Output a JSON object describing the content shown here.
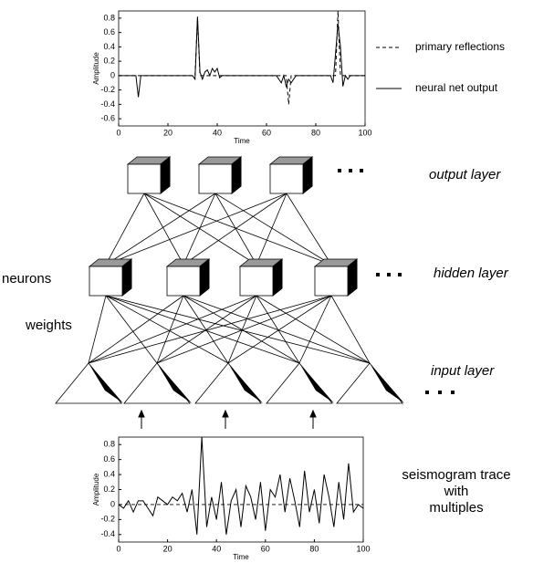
{
  "chart_data": [
    {
      "type": "line",
      "xlabel": "Time",
      "ylabel": "Amplitude",
      "x": [
        0,
        7,
        8,
        9,
        30,
        31,
        32,
        33,
        34,
        35,
        36,
        37,
        38,
        39,
        40,
        41,
        42,
        44,
        60,
        64,
        65,
        66,
        67,
        68,
        69,
        70,
        71,
        72,
        73,
        86,
        87,
        88,
        89,
        90,
        91,
        92,
        93,
        94,
        100
      ],
      "series": [
        {
          "name": "primary reflections",
          "color": "#000000",
          "dash": "dashed",
          "values": [
            0,
            0,
            0,
            0,
            0,
            0,
            0.8,
            0,
            0,
            0,
            0,
            0,
            0,
            0,
            0,
            0,
            0,
            0,
            0,
            0,
            0,
            0,
            0,
            0,
            -0.4,
            0,
            0,
            0,
            0,
            0,
            0,
            0,
            0.9,
            0,
            0,
            0,
            0,
            0,
            0
          ]
        },
        {
          "name": "neural net output",
          "color": "#000000",
          "dash": "solid",
          "values": [
            0,
            0,
            -0.3,
            0,
            0,
            -0.05,
            0.82,
            0.05,
            -0.05,
            0.05,
            0.08,
            0,
            0.1,
            0.05,
            0.1,
            -0.03,
            0,
            0,
            0,
            0,
            -0.05,
            -0.1,
            0,
            -0.15,
            -0.05,
            -0.1,
            -0.05,
            0,
            0,
            0,
            -0.1,
            0.3,
            0.72,
            0.4,
            -0.15,
            0,
            -0.05,
            0,
            0
          ]
        }
      ],
      "xlim": [
        0,
        100
      ],
      "xticks": [
        0,
        20,
        40,
        60,
        80,
        100
      ],
      "ylim": [
        -0.7,
        0.9
      ],
      "yticks": [
        -0.6,
        -0.4,
        -0.2,
        0,
        0.2,
        0.4,
        0.6,
        0.8
      ]
    },
    {
      "type": "line",
      "xlabel": "Time",
      "ylabel": "Amplitude",
      "color": "#000000",
      "x": [
        0,
        2,
        4,
        6,
        8,
        10,
        12,
        14,
        16,
        18,
        20,
        22,
        24,
        26,
        28,
        30,
        32,
        34,
        36,
        38,
        40,
        42,
        44,
        46,
        48,
        50,
        52,
        54,
        56,
        58,
        60,
        62,
        64,
        66,
        68,
        70,
        72,
        74,
        76,
        78,
        80,
        82,
        84,
        86,
        88,
        90,
        92,
        94,
        96,
        98,
        100
      ],
      "values": [
        0,
        -0.05,
        0.05,
        -0.1,
        0.05,
        0.05,
        -0.05,
        -0.15,
        0.1,
        0.05,
        0,
        0.1,
        0.05,
        0.15,
        -0.1,
        0.2,
        -0.4,
        0.9,
        -0.3,
        0.1,
        -0.2,
        0.3,
        -0.4,
        0.05,
        0.2,
        -0.3,
        0.25,
        0.1,
        -0.2,
        0.3,
        -0.35,
        0.2,
        0.1,
        0.4,
        -0.1,
        0.35,
        0.05,
        -0.3,
        0.45,
        -0.1,
        0.2,
        -0.25,
        0.4,
        0.1,
        -0.3,
        0.3,
        -0.2,
        0.55,
        -0.1,
        0,
        -0.05
      ],
      "xlim": [
        0,
        100
      ],
      "xticks": [
        0,
        20,
        40,
        60,
        80,
        100
      ],
      "ylim": [
        -0.5,
        0.9
      ],
      "yticks": [
        -0.4,
        -0.2,
        0,
        0.2,
        0.4,
        0.6,
        0.8
      ]
    }
  ],
  "diagram": {
    "output_label": "output layer",
    "hidden_label": "hidden layer",
    "input_label": "input layer",
    "neurons_label": "neurons",
    "weights_label": "weights",
    "trace_label": [
      "seismogram trace",
      "with",
      "multiples"
    ]
  }
}
